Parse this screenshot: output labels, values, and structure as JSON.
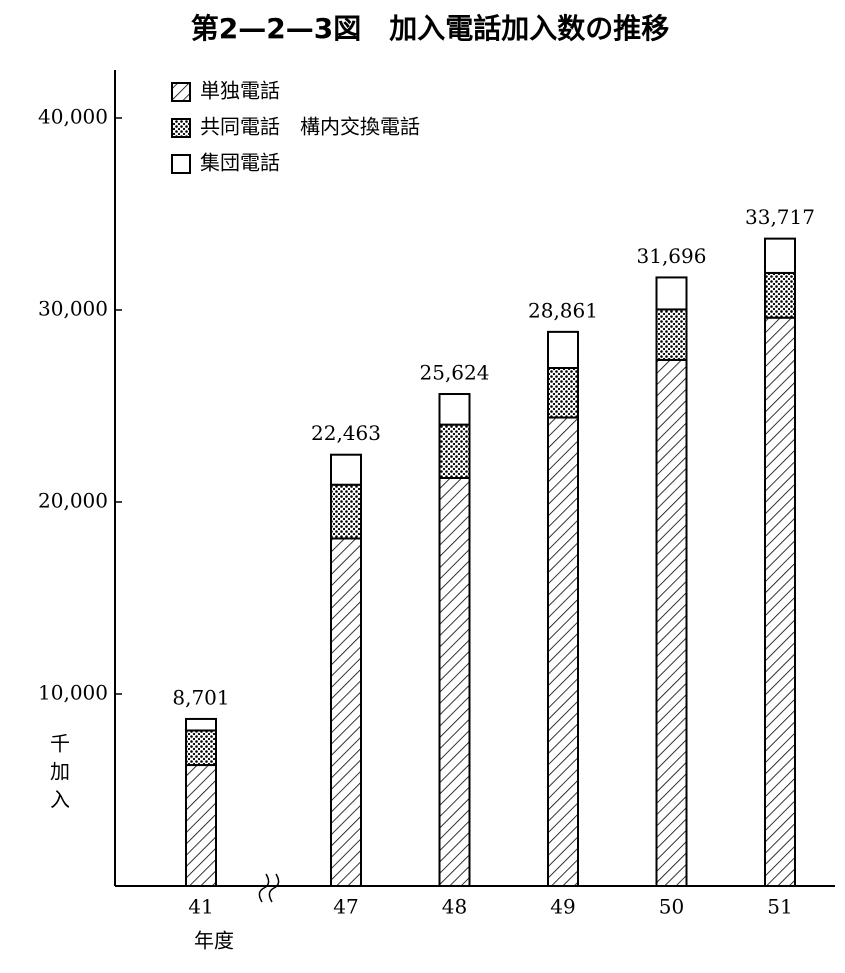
{
  "chart_data": {
    "type": "stacked_bar",
    "title": "第2—2—3図　加入電話加入数の推移",
    "y_label": "千加入",
    "x_label": "年度",
    "categories": [
      "41",
      "47",
      "48",
      "49",
      "50",
      "51"
    ],
    "series": [
      {
        "name": "単独電話",
        "pattern": "hatch",
        "values": [
          6300,
          18100,
          21250,
          24400,
          27400,
          29600
        ]
      },
      {
        "name": "共同電話　構内交換電話",
        "pattern": "dots",
        "values": [
          1800,
          2800,
          2780,
          2580,
          2630,
          2330
        ]
      },
      {
        "name": "集団電話",
        "pattern": "none",
        "values": [
          601,
          1563,
          1594,
          1881,
          1666,
          1787
        ]
      }
    ],
    "totals": [
      8701,
      22463,
      25624,
      28861,
      31696,
      33717
    ],
    "total_labels": [
      "8,701",
      "22,463",
      "25,624",
      "28,861",
      "31,696",
      "33,717"
    ],
    "ylim": [
      0,
      42500
    ],
    "yticks": [
      {
        "value": 10000,
        "label": "10,000"
      },
      {
        "value": 20000,
        "label": "20,000"
      },
      {
        "value": 30000,
        "label": "30,000"
      },
      {
        "value": 40000,
        "label": "40,000"
      }
    ],
    "axis_break_after": "41"
  }
}
